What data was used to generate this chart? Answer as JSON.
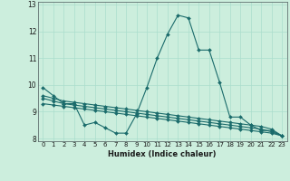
{
  "xlabel": "Humidex (Indice chaleur)",
  "ylabel": "",
  "bg_color": "#cceedd",
  "line_color": "#1a6b6b",
  "grid_color": "#aaddcc",
  "x_values": [
    0,
    1,
    2,
    3,
    4,
    5,
    6,
    7,
    8,
    9,
    10,
    11,
    12,
    13,
    14,
    15,
    16,
    17,
    18,
    19,
    20,
    21,
    22,
    23
  ],
  "line1": [
    9.9,
    9.6,
    9.3,
    9.3,
    8.5,
    8.6,
    8.4,
    8.2,
    8.2,
    8.9,
    9.9,
    11.0,
    11.9,
    12.6,
    12.5,
    11.3,
    11.3,
    10.1,
    8.8,
    8.8,
    8.5,
    8.3,
    8.3,
    8.1
  ],
  "line2": [
    9.6,
    9.5,
    9.4,
    9.35,
    9.3,
    9.25,
    9.2,
    9.15,
    9.1,
    9.05,
    9.0,
    8.95,
    8.9,
    8.85,
    8.8,
    8.75,
    8.7,
    8.65,
    8.6,
    8.55,
    8.5,
    8.45,
    8.35,
    8.1
  ],
  "line3": [
    9.5,
    9.4,
    9.3,
    9.25,
    9.2,
    9.15,
    9.1,
    9.05,
    9.0,
    8.95,
    8.9,
    8.85,
    8.8,
    8.75,
    8.7,
    8.65,
    8.6,
    8.55,
    8.5,
    8.45,
    8.4,
    8.35,
    8.25,
    8.1
  ],
  "line4": [
    9.3,
    9.25,
    9.2,
    9.15,
    9.1,
    9.05,
    9.0,
    8.95,
    8.9,
    8.85,
    8.8,
    8.75,
    8.7,
    8.65,
    8.6,
    8.55,
    8.5,
    8.45,
    8.4,
    8.35,
    8.3,
    8.25,
    8.2,
    8.1
  ],
  "xlim": [
    -0.5,
    23.5
  ],
  "ylim": [
    7.9,
    13.1
  ],
  "yticks": [
    8,
    9,
    10,
    11,
    12,
    13
  ],
  "xticks": [
    0,
    1,
    2,
    3,
    4,
    5,
    6,
    7,
    8,
    9,
    10,
    11,
    12,
    13,
    14,
    15,
    16,
    17,
    18,
    19,
    20,
    21,
    22,
    23
  ]
}
